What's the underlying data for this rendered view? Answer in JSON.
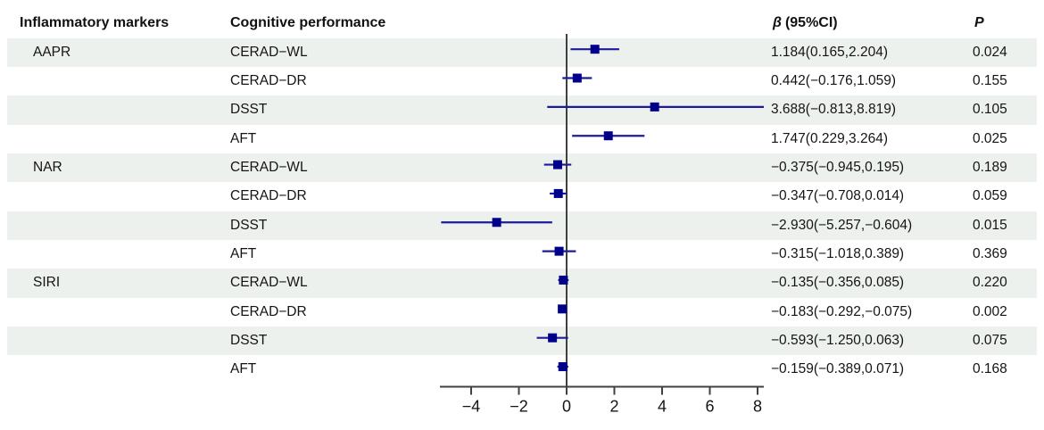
{
  "header": {
    "col_markers": "Inflammatory markers",
    "col_cognitive": "Cognitive performance",
    "col_beta_symbol": "β",
    "col_beta_rest": "(95%CI)",
    "col_p": "P"
  },
  "colors": {
    "marker_square": "#00008b",
    "ci_line": "#1c1c99",
    "row_band": "#edf1ee",
    "axis_line": "#404040",
    "text": "#141414"
  },
  "chart_data": {
    "type": "forest",
    "title": "",
    "xlabel": "",
    "axis_ticks": [
      {
        "value": -4,
        "label": "−4"
      },
      {
        "value": -2,
        "label": "−2"
      },
      {
        "value": 0,
        "label": "0"
      },
      {
        "value": 2,
        "label": "2"
      },
      {
        "value": 4,
        "label": "4"
      },
      {
        "value": 6,
        "label": "6"
      },
      {
        "value": 8,
        "label": "8"
      }
    ],
    "axis_range": [
      -5.31,
      8.26
    ],
    "reference_line": 0,
    "rows": [
      {
        "marker": "AAPR",
        "test": "CERAD−WL",
        "beta": 1.184,
        "ci_low": 0.165,
        "ci_high": 2.204,
        "ci_text": "1.184(0.165,2.204)",
        "p": "0.024",
        "shaded": true
      },
      {
        "marker": "",
        "test": "CERAD−DR",
        "beta": 0.442,
        "ci_low": -0.176,
        "ci_high": 1.059,
        "ci_text": "0.442(−0.176,1.059)",
        "p": "0.155",
        "shaded": false
      },
      {
        "marker": "",
        "test": "DSST",
        "beta": 3.688,
        "ci_low": -0.813,
        "ci_high": 8.819,
        "ci_text": "3.688(−0.813,8.819)",
        "p": "0.105",
        "shaded": true
      },
      {
        "marker": "",
        "test": "AFT",
        "beta": 1.747,
        "ci_low": 0.229,
        "ci_high": 3.264,
        "ci_text": "1.747(0.229,3.264)",
        "p": "0.025",
        "shaded": false
      },
      {
        "marker": "NAR",
        "test": "CERAD−WL",
        "beta": -0.375,
        "ci_low": -0.945,
        "ci_high": 0.195,
        "ci_text": "−0.375(−0.945,0.195)",
        "p": "0.189",
        "shaded": true
      },
      {
        "marker": "",
        "test": "CERAD−DR",
        "beta": -0.347,
        "ci_low": -0.708,
        "ci_high": 0.014,
        "ci_text": "−0.347(−0.708,0.014)",
        "p": "0.059",
        "shaded": false
      },
      {
        "marker": "",
        "test": "DSST",
        "beta": -2.93,
        "ci_low": -5.257,
        "ci_high": -0.604,
        "ci_text": "−2.930(−5.257,−0.604)",
        "p": "0.015",
        "shaded": true
      },
      {
        "marker": "",
        "test": "AFT",
        "beta": -0.315,
        "ci_low": -1.018,
        "ci_high": 0.389,
        "ci_text": "−0.315(−1.018,0.389)",
        "p": "0.369",
        "shaded": false
      },
      {
        "marker": "SIRI",
        "test": "CERAD−WL",
        "beta": -0.135,
        "ci_low": -0.356,
        "ci_high": 0.085,
        "ci_text": "−0.135(−0.356,0.085)",
        "p": "0.220",
        "shaded": true
      },
      {
        "marker": "",
        "test": "CERAD−DR",
        "beta": -0.183,
        "ci_low": -0.292,
        "ci_high": -0.075,
        "ci_text": "−0.183(−0.292,−0.075)",
        "p": "0.002",
        "shaded": false
      },
      {
        "marker": "",
        "test": "DSST",
        "beta": -0.593,
        "ci_low": -1.25,
        "ci_high": 0.063,
        "ci_text": "−0.593(−1.250,0.063)",
        "p": "0.075",
        "shaded": true
      },
      {
        "marker": "",
        "test": "AFT",
        "beta": -0.159,
        "ci_low": -0.389,
        "ci_high": 0.071,
        "ci_text": "−0.159(−0.389,0.071)",
        "p": "0.168",
        "shaded": false
      }
    ]
  }
}
